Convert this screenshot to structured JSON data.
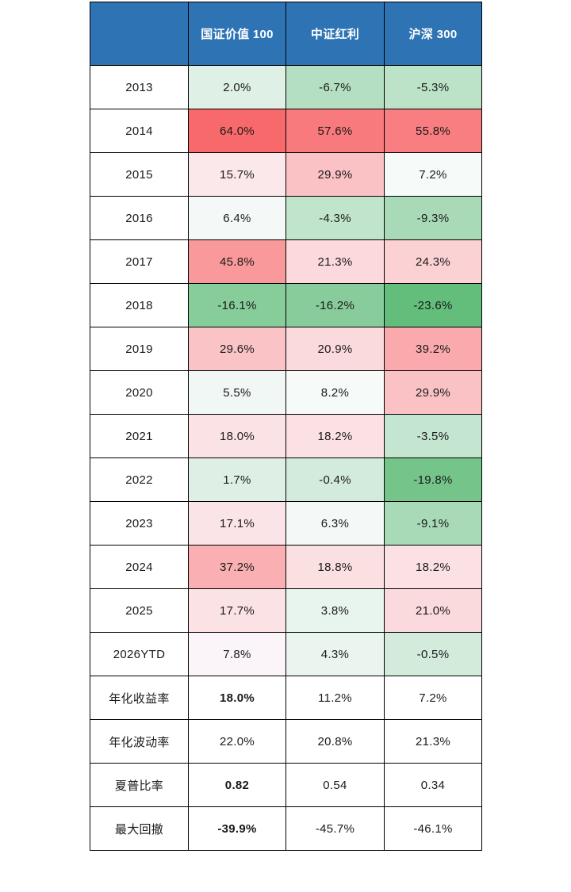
{
  "page": {
    "background": "#FFFFFF"
  },
  "colors": {
    "header_bg": "#2E74B5",
    "header_text": "#FFFFFF",
    "grid_border": "#000000",
    "body_text": "#1A1A1A",
    "heat_max_red": "#F8696B",
    "heat_mid_white": "#FCFCFF",
    "heat_min_green": "#63BE7B"
  },
  "table": {
    "header": {
      "bg": "#2E74B5",
      "text_color": "#FFFFFF",
      "corner": "",
      "columns": [
        "国证价值 100",
        "中证红利",
        "沪深 300"
      ]
    },
    "rows": [
      {
        "label": "2013",
        "cells": [
          {
            "text": "2.0%",
            "bg": "#DFF0E6"
          },
          {
            "text": "-6.7%",
            "bg": "#B5DFC2"
          },
          {
            "text": "-5.3%",
            "bg": "#BCE2C7"
          }
        ]
      },
      {
        "label": "2014",
        "cells": [
          {
            "text": "64.0%",
            "bg": "#F8696B"
          },
          {
            "text": "57.6%",
            "bg": "#F87A7C"
          },
          {
            "text": "55.8%",
            "bg": "#F87E81"
          }
        ]
      },
      {
        "label": "2015",
        "cells": [
          {
            "text": "15.7%",
            "bg": "#FBE8EB"
          },
          {
            "text": "29.9%",
            "bg": "#FAC2C5"
          },
          {
            "text": "7.2%",
            "bg": "#F6FAF9"
          }
        ]
      },
      {
        "label": "2016",
        "cells": [
          {
            "text": "6.4%",
            "bg": "#F4F9F8"
          },
          {
            "text": "-4.3%",
            "bg": "#C0E4CC"
          },
          {
            "text": "-9.3%",
            "bg": "#A8DAB7"
          }
        ]
      },
      {
        "label": "2017",
        "cells": [
          {
            "text": "45.8%",
            "bg": "#F9999B"
          },
          {
            "text": "21.3%",
            "bg": "#FBD9DC"
          },
          {
            "text": "24.3%",
            "bg": "#FBD1D4"
          }
        ]
      },
      {
        "label": "2018",
        "cells": [
          {
            "text": "-16.1%",
            "bg": "#87CD9A"
          },
          {
            "text": "-16.2%",
            "bg": "#87CC9A"
          },
          {
            "text": "-23.6%",
            "bg": "#63BE7B"
          }
        ]
      },
      {
        "label": "2019",
        "cells": [
          {
            "text": "29.6%",
            "bg": "#FAC3C6"
          },
          {
            "text": "20.9%",
            "bg": "#FBDADD"
          },
          {
            "text": "39.2%",
            "bg": "#FAAAAD"
          }
        ]
      },
      {
        "label": "2020",
        "cells": [
          {
            "text": "5.5%",
            "bg": "#F0F7F5"
          },
          {
            "text": "8.2%",
            "bg": "#F6FAF8"
          },
          {
            "text": "29.9%",
            "bg": "#FAC2C5"
          }
        ]
      },
      {
        "label": "2021",
        "cells": [
          {
            "text": "18.0%",
            "bg": "#FBE2E5"
          },
          {
            "text": "18.2%",
            "bg": "#FBE1E4"
          },
          {
            "text": "-3.5%",
            "bg": "#C4E5CF"
          }
        ]
      },
      {
        "label": "2022",
        "cells": [
          {
            "text": "1.7%",
            "bg": "#DEF0E5"
          },
          {
            "text": "-0.4%",
            "bg": "#D3EBDC"
          },
          {
            "text": "-19.8%",
            "bg": "#75C58B"
          }
        ]
      },
      {
        "label": "2023",
        "cells": [
          {
            "text": "17.1%",
            "bg": "#FBE4E7"
          },
          {
            "text": "6.3%",
            "bg": "#F4F9F8"
          },
          {
            "text": "-9.1%",
            "bg": "#A9DAB8"
          }
        ]
      },
      {
        "label": "2024",
        "cells": [
          {
            "text": "37.2%",
            "bg": "#FAAFB2"
          },
          {
            "text": "18.8%",
            "bg": "#FBE0E2"
          },
          {
            "text": "18.2%",
            "bg": "#FBE1E4"
          }
        ]
      },
      {
        "label": "2025",
        "cells": [
          {
            "text": "17.7%",
            "bg": "#FBE2E5"
          },
          {
            "text": "3.8%",
            "bg": "#E8F4EE"
          },
          {
            "text": "21.0%",
            "bg": "#FBDADD"
          }
        ]
      },
      {
        "label": "2026YTD",
        "cells": [
          {
            "text": "7.8%",
            "bg": "#FBF4F8"
          },
          {
            "text": "4.3%",
            "bg": "#EAF5F0"
          },
          {
            "text": "-0.5%",
            "bg": "#D3EBDB"
          }
        ]
      },
      {
        "label": "年化收益率",
        "cells": [
          {
            "text": "18.0%",
            "bg": "#FFFFFF",
            "bold": true
          },
          {
            "text": "11.2%",
            "bg": "#FFFFFF"
          },
          {
            "text": "7.2%",
            "bg": "#FFFFFF"
          }
        ]
      },
      {
        "label": "年化波动率",
        "cells": [
          {
            "text": "22.0%",
            "bg": "#FFFFFF"
          },
          {
            "text": "20.8%",
            "bg": "#FFFFFF"
          },
          {
            "text": "21.3%",
            "bg": "#FFFFFF"
          }
        ]
      },
      {
        "label": "夏普比率",
        "cells": [
          {
            "text": "0.82",
            "bg": "#FFFFFF",
            "bold": true
          },
          {
            "text": "0.54",
            "bg": "#FFFFFF"
          },
          {
            "text": "0.34",
            "bg": "#FFFFFF"
          }
        ]
      },
      {
        "label": "最大回撤",
        "cells": [
          {
            "text": "-39.9%",
            "bg": "#FFFFFF",
            "bold": true
          },
          {
            "text": "-45.7%",
            "bg": "#FFFFFF"
          },
          {
            "text": "-46.1%",
            "bg": "#FFFFFF"
          }
        ]
      }
    ]
  },
  "chart_data": {
    "type": "table",
    "columns": [
      "",
      "国证价值100",
      "中证红利",
      "沪深300"
    ],
    "rows": [
      [
        "2013",
        "2.0%",
        "-6.7%",
        "-5.3%"
      ],
      [
        "2014",
        "64.0%",
        "57.6%",
        "55.8%"
      ],
      [
        "2015",
        "15.7%",
        "29.9%",
        "7.2%"
      ],
      [
        "2016",
        "6.4%",
        "-4.3%",
        "-9.3%"
      ],
      [
        "2017",
        "45.8%",
        "21.3%",
        "24.3%"
      ],
      [
        "2018",
        "-16.1%",
        "-16.2%",
        "-23.6%"
      ],
      [
        "2019",
        "29.6%",
        "20.9%",
        "39.2%"
      ],
      [
        "2020",
        "5.5%",
        "8.2%",
        "29.9%"
      ],
      [
        "2021",
        "18.0%",
        "18.2%",
        "-3.5%"
      ],
      [
        "2022",
        "1.7%",
        "-0.4%",
        "-19.8%"
      ],
      [
        "2023",
        "17.1%",
        "6.3%",
        "-9.1%"
      ],
      [
        "2024",
        "37.2%",
        "18.8%",
        "18.2%"
      ],
      [
        "2025",
        "17.7%",
        "3.8%",
        "21.0%"
      ],
      [
        "2026YTD",
        "7.8%",
        "4.3%",
        "-0.5%"
      ],
      [
        "年化收益率",
        "18.0%",
        "11.2%",
        "7.2%"
      ],
      [
        "年化波动率",
        "22.0%",
        "20.8%",
        "21.3%"
      ],
      [
        "夏普比率",
        "0.82",
        "0.54",
        "0.34"
      ],
      [
        "最大回撤",
        "-39.9%",
        "-45.7%",
        "-46.1%"
      ]
    ],
    "heatmap": {
      "applies_to": "yearly return cells (2013-2026YTD)",
      "max_color": "#F8696B",
      "mid_color": "#FCFCFF",
      "min_color": "#63BE7B"
    }
  }
}
